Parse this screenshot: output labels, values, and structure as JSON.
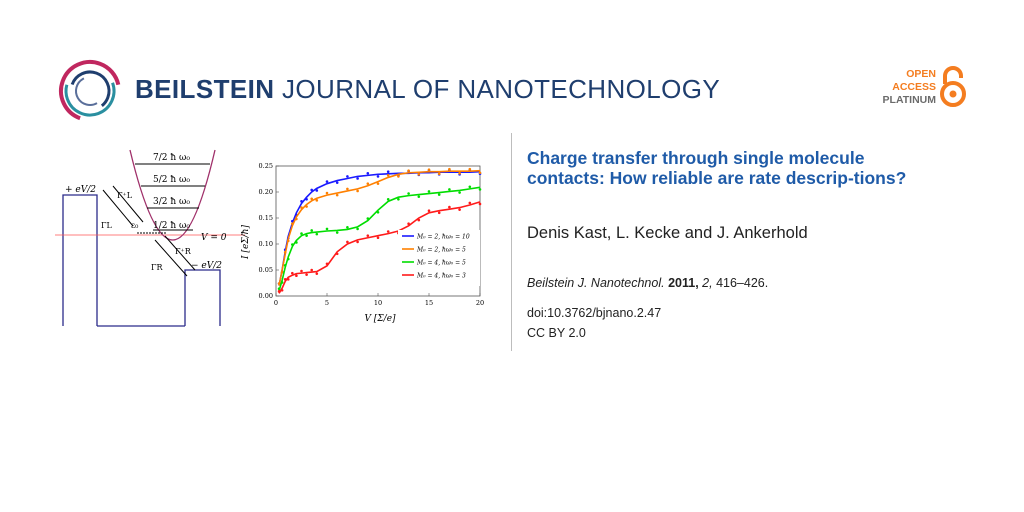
{
  "header": {
    "journal_bold": "BEILSTEIN",
    "journal_rest": "JOURNAL OF NANOTECHNOLOGY",
    "oa_line1": "OPEN",
    "oa_line2": "ACCESS",
    "oa_line3": "PLATINUM",
    "colors": {
      "brand": "#1f3e6e",
      "accent": "#f47d20",
      "title": "#1f5ba8",
      "logo_pink": "#c0275f",
      "logo_teal": "#2a8fa0"
    }
  },
  "article": {
    "title": "Charge transfer through single molecule contacts: How reliable are rate descrip-tions?",
    "authors": "Denis Kast, L. Kecke and J. Ankerhold",
    "citation_journal": "Beilstein J. Nanotechnol.",
    "citation_year": "2011,",
    "citation_volume": "2,",
    "citation_pages": "416–426.",
    "doi": "doi:10.3762/bjnano.2.47",
    "license": "CC BY 2.0"
  },
  "schematic": {
    "levels": [
      "7/2 ħ ω₀",
      "5/2 ħ ω₀",
      "3/2 ħ ω₀",
      "1/2 ħ ω₀"
    ],
    "left_bias": "+ eV/2",
    "right_bias": "− eV/2",
    "zero_label": "V = 0",
    "eps_label": "ε₀",
    "gamma_L_plus": "Γ⁺L",
    "gamma_L": "ΓL",
    "gamma_R_plus": "Γ⁺R",
    "gamma_R": "ΓR"
  },
  "chart_data": {
    "type": "scatter",
    "xlabel": "V [Σ/e]",
    "ylabel": "I [eΣ/ħ]",
    "xlim": [
      0,
      20
    ],
    "ylim": [
      0,
      0.25
    ],
    "xticks": [
      "0",
      "5",
      "10",
      "15",
      "20"
    ],
    "yticks": [
      "0.00",
      "0.05",
      "0.10",
      "0.15",
      "0.20",
      "0.25"
    ],
    "legend_position": "bottom-right",
    "series": [
      {
        "name": "M₀ = 2, ħω₀ = 10",
        "color": "#1a1aff",
        "x": [
          0.3,
          0.6,
          0.9,
          1.2,
          1.6,
          2.0,
          2.5,
          3.0,
          3.5,
          4.0,
          5.0,
          6.0,
          7.0,
          8.0,
          9.0,
          10.0,
          11.0,
          12.0,
          13.0,
          14.0,
          15.0,
          16.0,
          17.0,
          18.0,
          19.0,
          20.0
        ],
        "y": [
          0.02,
          0.05,
          0.085,
          0.115,
          0.14,
          0.16,
          0.178,
          0.19,
          0.2,
          0.207,
          0.216,
          0.222,
          0.226,
          0.23,
          0.232,
          0.234,
          0.235,
          0.236,
          0.236,
          0.237,
          0.237,
          0.238,
          0.238,
          0.238,
          0.238,
          0.239
        ]
      },
      {
        "name": "M₀ = 2, ħω₀ = 5",
        "color": "#ff8000",
        "x": [
          0.3,
          0.6,
          0.9,
          1.2,
          1.6,
          2.0,
          2.5,
          3.0,
          3.5,
          4.0,
          5.0,
          6.0,
          7.0,
          8.0,
          9.0,
          10.0,
          11.0,
          12.0,
          13.0,
          14.0,
          15.0,
          16.0,
          17.0,
          18.0,
          19.0,
          20.0
        ],
        "y": [
          0.02,
          0.05,
          0.08,
          0.11,
          0.135,
          0.152,
          0.166,
          0.176,
          0.183,
          0.188,
          0.194,
          0.198,
          0.202,
          0.206,
          0.212,
          0.22,
          0.228,
          0.234,
          0.237,
          0.238,
          0.239,
          0.239,
          0.24,
          0.24,
          0.24,
          0.241
        ]
      },
      {
        "name": "M₀ = 4, ħω₀ = 5",
        "color": "#00dd00",
        "x": [
          0.3,
          0.6,
          0.9,
          1.2,
          1.6,
          2.0,
          2.5,
          3.0,
          3.5,
          4.0,
          5.0,
          6.0,
          7.0,
          8.0,
          9.0,
          10.0,
          11.0,
          12.0,
          13.0,
          14.0,
          15.0,
          16.0,
          17.0,
          18.0,
          19.0,
          20.0
        ],
        "y": [
          0.01,
          0.03,
          0.055,
          0.075,
          0.095,
          0.107,
          0.116,
          0.12,
          0.122,
          0.123,
          0.125,
          0.126,
          0.128,
          0.133,
          0.145,
          0.165,
          0.182,
          0.19,
          0.193,
          0.195,
          0.197,
          0.199,
          0.201,
          0.203,
          0.206,
          0.209
        ]
      },
      {
        "name": "M₀ = 4, ħω₀ = 3",
        "color": "#ff1a1a",
        "x": [
          0.3,
          0.6,
          0.9,
          1.2,
          1.6,
          2.0,
          2.5,
          3.0,
          3.5,
          4.0,
          5.0,
          6.0,
          7.0,
          8.0,
          9.0,
          10.0,
          11.0,
          12.0,
          13.0,
          14.0,
          15.0,
          16.0,
          17.0,
          18.0,
          19.0,
          20.0
        ],
        "y": [
          0.005,
          0.015,
          0.028,
          0.036,
          0.04,
          0.043,
          0.044,
          0.045,
          0.046,
          0.047,
          0.058,
          0.085,
          0.1,
          0.108,
          0.112,
          0.116,
          0.12,
          0.125,
          0.135,
          0.15,
          0.16,
          0.164,
          0.167,
          0.17,
          0.175,
          0.181
        ]
      }
    ]
  }
}
